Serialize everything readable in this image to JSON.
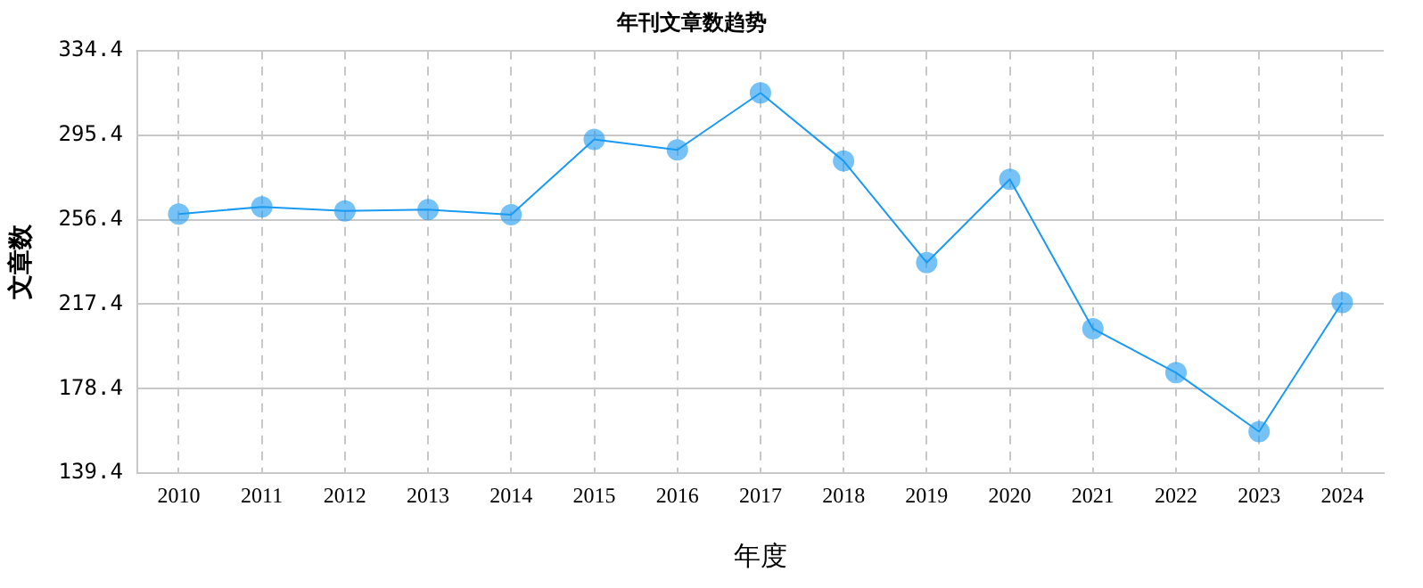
{
  "chart_data": {
    "type": "line",
    "title": "年刊文章数趋势",
    "xlabel": "年度",
    "ylabel": "文章数",
    "categories": [
      "2010",
      "2011",
      "2012",
      "2013",
      "2014",
      "2015",
      "2016",
      "2017",
      "2018",
      "2019",
      "2020",
      "2021",
      "2022",
      "2023",
      "2024"
    ],
    "series": [
      {
        "color": "#1a9af0",
        "values": [
          259,
          262.3,
          260.4,
          261,
          258.7,
          293.4,
          288.6,
          314.9,
          283.5,
          236.6,
          275,
          206.1,
          185.8,
          158.6,
          218.2
        ]
      }
    ],
    "ylim": [
      139.4,
      334.4
    ],
    "yticks": [
      139.4,
      178.4,
      217.4,
      256.4,
      295.4,
      334.4
    ],
    "grid": true,
    "marker": "circle",
    "line_style": "solid",
    "legend": false
  }
}
